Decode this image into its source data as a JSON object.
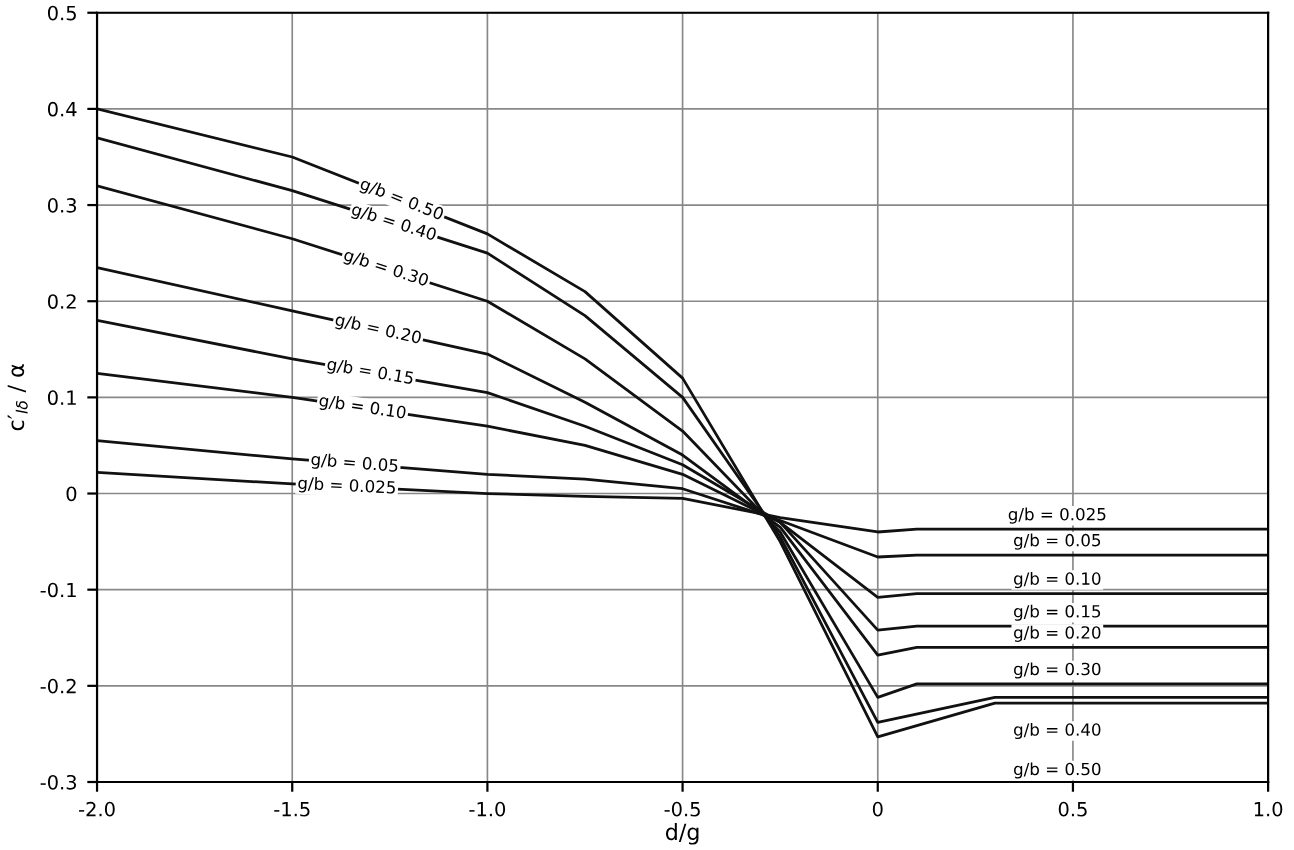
{
  "chart_data": {
    "type": "line",
    "xlabel": "d/g",
    "ylabel": "c′$_{lδ}$ / α",
    "xlim": [
      -2.0,
      1.0
    ],
    "ylim": [
      -0.3,
      0.5
    ],
    "xticks": [
      {
        "value": -2.0,
        "label": "-2.0"
      },
      -1.5,
      {
        "value": -1.0,
        "label": "-1.0"
      },
      -0.5,
      0,
      0.5,
      {
        "value": 1.0,
        "label": "1.0"
      }
    ],
    "yticks": [
      -0.3,
      -0.2,
      -0.1,
      0,
      0.1,
      0.2,
      0.3,
      0.4,
      0.5
    ],
    "grid": true,
    "marker": "none",
    "line_style": "solid",
    "series": [
      {
        "name": "g/b = 0.50",
        "color": "#111111",
        "x": [
          -2.0,
          -1.5,
          -1.0,
          -0.75,
          -0.5,
          -0.25,
          0,
          0.3,
          1.0
        ],
        "values": [
          0.4,
          0.35,
          0.27,
          0.21,
          0.12,
          -0.05,
          -0.253,
          -0.218,
          -0.218
        ]
      },
      {
        "name": "g/b = 0.40",
        "color": "#111111",
        "x": [
          -2.0,
          -1.5,
          -1.0,
          -0.75,
          -0.5,
          -0.25,
          0,
          0.3,
          1.0
        ],
        "values": [
          0.37,
          0.315,
          0.25,
          0.185,
          0.1,
          -0.045,
          -0.238,
          -0.212,
          -0.212
        ]
      },
      {
        "name": "g/b = 0.30",
        "color": "#111111",
        "x": [
          -2.0,
          -1.5,
          -1.0,
          -0.75,
          -0.5,
          -0.25,
          0,
          0.1,
          1.0
        ],
        "values": [
          0.32,
          0.265,
          0.2,
          0.14,
          0.065,
          -0.04,
          -0.212,
          -0.198,
          -0.198
        ]
      },
      {
        "name": "g/b = 0.20",
        "color": "#111111",
        "x": [
          -2.0,
          -1.5,
          -1.0,
          -0.75,
          -0.5,
          -0.25,
          0,
          0.1,
          1.0
        ],
        "values": [
          0.235,
          0.19,
          0.145,
          0.095,
          0.04,
          -0.035,
          -0.168,
          -0.16,
          -0.16
        ]
      },
      {
        "name": "g/b = 0.15",
        "color": "#111111",
        "x": [
          -2.0,
          -1.5,
          -1.0,
          -0.75,
          -0.5,
          -0.25,
          0,
          0.1,
          1.0
        ],
        "values": [
          0.18,
          0.14,
          0.105,
          0.07,
          0.03,
          -0.03,
          -0.142,
          -0.138,
          -0.138
        ]
      },
      {
        "name": "g/b = 0.10",
        "color": "#111111",
        "x": [
          -2.0,
          -1.5,
          -1.0,
          -0.75,
          -0.5,
          -0.25,
          0,
          0.1,
          1.0
        ],
        "values": [
          0.125,
          0.1,
          0.07,
          0.05,
          0.02,
          -0.03,
          -0.108,
          -0.104,
          -0.104
        ]
      },
      {
        "name": "g/b = 0.05",
        "color": "#111111",
        "x": [
          -2.0,
          -1.5,
          -1.0,
          -0.75,
          -0.5,
          -0.25,
          0,
          0.1,
          1.0
        ],
        "values": [
          0.055,
          0.036,
          0.02,
          0.015,
          0.005,
          -0.028,
          -0.066,
          -0.064,
          -0.064
        ]
      },
      {
        "name": "g/b = 0.025",
        "color": "#111111",
        "x": [
          -2.0,
          -1.5,
          -1.0,
          -0.75,
          -0.5,
          -0.25,
          0,
          0.1,
          1.0
        ],
        "values": [
          0.022,
          0.01,
          0.0,
          -0.003,
          -0.005,
          -0.025,
          -0.04,
          -0.037,
          -0.037
        ]
      }
    ]
  }
}
